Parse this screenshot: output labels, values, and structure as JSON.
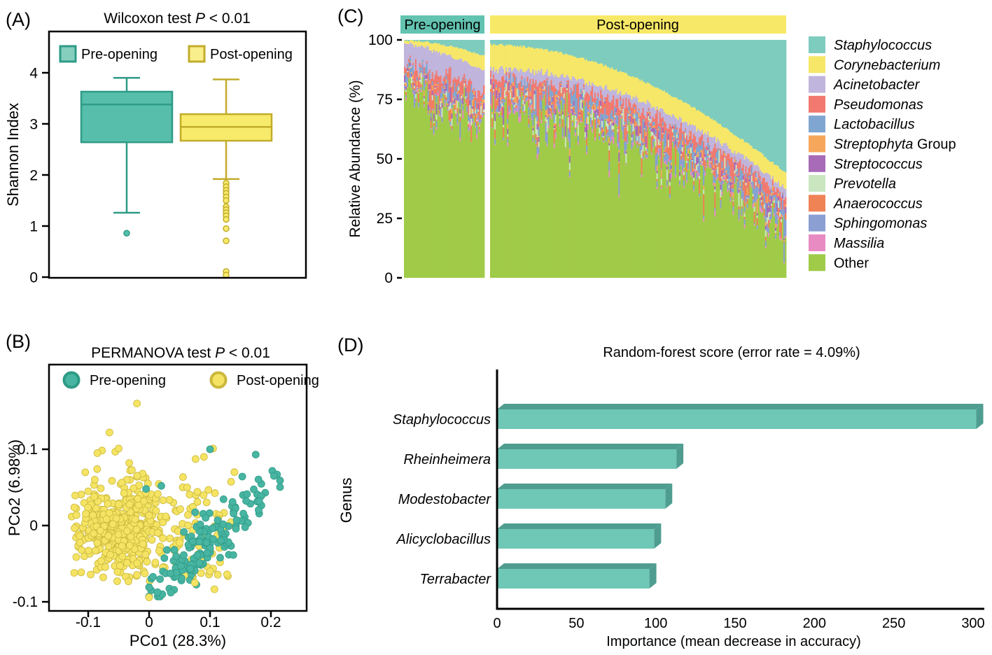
{
  "figure": {
    "panel_labels": [
      "(A)",
      "(B)",
      "(C)",
      "(D)"
    ],
    "background": "#FFFFFF"
  },
  "colors": {
    "axis": "#000000",
    "teal": {
      "fill": "#56BEAB",
      "stroke": "#2E9B86",
      "legend_fill": "#86CFBF"
    },
    "yellow": {
      "fill": "#F8EB6B",
      "stroke": "#C2AC2A",
      "legend_fill": "#F9EE8C"
    },
    "scatter": {
      "teal": "#47B5A2",
      "teal_edge": "#2E9B86",
      "yellow": "#F5E463",
      "yellow_edge": "#CBB83C"
    },
    "bar3d": {
      "face": "#6FC7B5",
      "dark": "#4F9D90"
    },
    "header": {
      "pre": "#63C3B1",
      "post": "#F7E967"
    }
  },
  "chart_data": [
    {
      "panel": "A",
      "type": "box",
      "title_prefix": "Wilcoxon test ",
      "title_p": "P",
      "title_suffix": " < 0.01",
      "ylabel": "Shannon Index",
      "yticks": [
        0,
        1,
        2,
        3,
        4
      ],
      "ylim": [
        0,
        4.8
      ],
      "groups": [
        {
          "name": "Pre-opening",
          "color_key": "teal",
          "whisker_low": 1.26,
          "q1": 2.64,
          "median": 3.38,
          "q3": 3.63,
          "whisker_high": 3.9,
          "outliers": [
            0.86
          ]
        },
        {
          "name": "Post-opening",
          "color_key": "yellow",
          "whisker_low": 1.92,
          "q1": 2.67,
          "median": 2.94,
          "q3": 3.19,
          "whisker_high": 3.87,
          "outliers": [
            1.84,
            1.77,
            1.7,
            1.64,
            1.57,
            1.5,
            1.38,
            1.32,
            1.26,
            1.2,
            1.13,
            0.95,
            0.71,
            0.11,
            0.04
          ]
        }
      ]
    },
    {
      "panel": "B",
      "type": "scatter",
      "title_prefix": "PERMANOVA test ",
      "title_p": "P",
      "title_suffix": " < 0.01",
      "xlabel": "PCo1 (28.3%)",
      "ylabel": "PCo2 (6.98%)",
      "xticks": [
        -0.1,
        0,
        0.1,
        0.2
      ],
      "yticks": [
        -0.1,
        0,
        0.1
      ],
      "xlim": [
        -0.16,
        0.26
      ],
      "ylim": [
        -0.115,
        0.21
      ],
      "legend": [
        "Pre-opening",
        "Post-opening"
      ],
      "seed": 7,
      "clusters": [
        {
          "series": "Post-opening",
          "n": 430,
          "cx": -0.048,
          "cy": -0.003,
          "sdx": 0.034,
          "sdy": 0.031,
          "clip": [
            -0.135,
            0.075,
            -0.094,
            0.105
          ]
        },
        {
          "series": "Post-opening",
          "n": 95,
          "cx": 0.055,
          "cy": 0.0,
          "sdx": 0.045,
          "sdy": 0.04,
          "clip": [
            -0.03,
            0.155,
            -0.088,
            0.1
          ]
        }
      ],
      "band": {
        "series": "Pre-opening",
        "n": 155,
        "x_mean": 0.095,
        "x_sd": 0.05,
        "x_clip": [
          0.0,
          0.215
        ],
        "slope": 0.72,
        "intercept": -0.088,
        "y_noise": 0.018,
        "y_clip": [
          -0.093,
          0.095
        ]
      },
      "extra_points": {
        "Post-opening": [
          [
            -0.02,
            0.16
          ],
          [
            -0.065,
            0.122
          ],
          [
            -0.05,
            0.101
          ],
          [
            -0.085,
            0.095
          ],
          [
            0.105,
            0.101
          ],
          [
            0.0,
            -0.094
          ],
          [
            -0.123,
            -0.062
          ],
          [
            0.128,
            -0.064
          ],
          [
            0.14,
            0.07
          ],
          [
            0.09,
            0.09
          ],
          [
            0.075,
            -0.075
          ],
          [
            0.1,
            -0.06
          ]
        ],
        "Pre-opening": [
          [
            -0.005,
            0.048
          ],
          [
            0.02,
            0.052
          ],
          [
            0.1,
            0.1
          ],
          [
            0.175,
            0.093
          ],
          [
            0.21,
            0.067
          ],
          [
            0.205,
            0.065
          ]
        ]
      }
    },
    {
      "panel": "C",
      "type": "stacked-bar",
      "ylabel": "Relative Abundance (%)",
      "yticks": [
        0,
        25,
        50,
        75,
        100
      ],
      "ylim": [
        0,
        100
      ],
      "seed": 11,
      "sections": [
        {
          "label": "Pre-opening",
          "n_samples": 58
        },
        {
          "label": "Post-opening",
          "n_samples": 210
        }
      ],
      "taxa": [
        {
          "name": "Staphylococcus",
          "italic": true,
          "color": "#7ECCBE"
        },
        {
          "name": "Corynebacterium",
          "italic": true,
          "color": "#F6E768"
        },
        {
          "name": "Acinetobacter",
          "italic": true,
          "color": "#C0B5DC"
        },
        {
          "name": "Pseudomonas",
          "italic": true,
          "color": "#F2796F"
        },
        {
          "name": "Lactobacillus",
          "italic": true,
          "color": "#7FA6D0"
        },
        {
          "name": "Streptophyta",
          "italic": true,
          "suffix": " Group",
          "color": "#F6A75B"
        },
        {
          "name": "Streptococcus",
          "italic": true,
          "color": "#A76BB8"
        },
        {
          "name": "Prevotella",
          "italic": true,
          "color": "#C9E6C0"
        },
        {
          "name": "Anaerococcus",
          "italic": true,
          "color": "#F08356"
        },
        {
          "name": "Sphingomonas",
          "italic": true,
          "color": "#8C9FD3"
        },
        {
          "name": "Massilia",
          "italic": true,
          "color": "#E78BC2"
        },
        {
          "name": "Other",
          "italic": false,
          "color": "#A0CB48"
        }
      ],
      "group_mean_abundance": {
        "Pre-opening": {
          "Staphylococcus": 4,
          "Corynebacterium": 4,
          "Acinetobacter": 9,
          "Pseudomonas": 5,
          "Lactobacillus": 2,
          "Streptophyta Group": 1,
          "Streptococcus": 1.2,
          "Prevotella": 1,
          "Anaerococcus": 1.5,
          "Sphingomonas": 1.5,
          "Massilia": 0.7,
          "Other": 69
        },
        "Post-opening": {
          "Staphylococcus": 22,
          "Corynebacterium": 9,
          "Acinetobacter": 4,
          "Pseudomonas": 5,
          "Lactobacillus": 3,
          "Streptophyta Group": 1.2,
          "Streptococcus": 1.5,
          "Prevotella": 1.5,
          "Anaerococcus": 2,
          "Sphingomonas": 2,
          "Massilia": 0.8,
          "Other": 48
        }
      },
      "gen": {
        "pre": {
          "Staphylococcus": {
            "type": "wedge",
            "base": 0.2,
            "amp": 6.5,
            "pow": 1.7,
            "noise": 0.4
          },
          "Corynebacterium": {
            "type": "wedge",
            "base": 1.2,
            "amp": 5.0,
            "pow": 1.0,
            "noise": 0.8
          },
          "Acinetobacter": {
            "type": "uniform",
            "lo": 5,
            "hi": 13
          },
          "Pseudomonas": {
            "type": "exp",
            "mean": 5.0,
            "cap": 26
          },
          "Lactobacillus": {
            "type": "exp",
            "mean": 2.2,
            "cap": 10
          },
          "Streptophyta": {
            "type": "exp",
            "mean": 0.9,
            "cap": 5
          },
          "Streptococcus": {
            "type": "exp",
            "mean": 1.2,
            "cap": 7
          },
          "Prevotella": {
            "type": "exp",
            "mean": 0.9,
            "cap": 5
          },
          "Anaerococcus": {
            "type": "exp",
            "mean": 1.5,
            "cap": 8
          },
          "Sphingomonas": {
            "type": "exp",
            "mean": 1.5,
            "cap": 8
          },
          "Massilia": {
            "type": "exp",
            "mean": 0.6,
            "cap": 3.5
          },
          "min_other": 5
        },
        "post": {
          "Staphylococcus": {
            "type": "wedge",
            "base": 2,
            "amp": 54,
            "pow": 1.9,
            "noise": 0.5
          },
          "Corynebacterium": {
            "type": "wedge",
            "base": 10.5,
            "amp": -4,
            "pow": 1.0,
            "noise": 1.2
          },
          "Acinetobacter": {
            "type": "uniform",
            "lo": 1.5,
            "hi": 6.5
          },
          "Pseudomonas": {
            "type": "exp",
            "mean": 5.0,
            "cap": 24
          },
          "Lactobacillus": {
            "type": "exp",
            "mean": 3.0,
            "cap": 12
          },
          "Streptophyta": {
            "type": "exp",
            "mean": 1.2,
            "cap": 6
          },
          "Streptococcus": {
            "type": "exp",
            "mean": 1.5,
            "cap": 8
          },
          "Prevotella": {
            "type": "exp",
            "mean": 1.5,
            "cap": 7
          },
          "Anaerococcus": {
            "type": "exp",
            "mean": 2.0,
            "cap": 9
          },
          "Sphingomonas": {
            "type": "exp",
            "mean": 2.0,
            "cap": 9
          },
          "Massilia": {
            "type": "exp",
            "mean": 0.8,
            "cap": 4
          },
          "min_other": 6
        }
      }
    },
    {
      "panel": "D",
      "type": "bar",
      "orientation": "horizontal",
      "title": "Random-forest score (error rate = 4.09%)",
      "xlabel": "Importance (mean decrease in accuracy)",
      "ylabel": "Genus",
      "categories": [
        "Staphylococcus",
        "Rheinheimera",
        "Modestobacter",
        "Alicyclobacillus",
        "Terrabacter"
      ],
      "values": [
        302,
        113,
        106,
        99,
        96
      ],
      "xticks": [
        0,
        50,
        100,
        150,
        200,
        250,
        300
      ],
      "xlim": [
        0,
        307
      ]
    }
  ]
}
